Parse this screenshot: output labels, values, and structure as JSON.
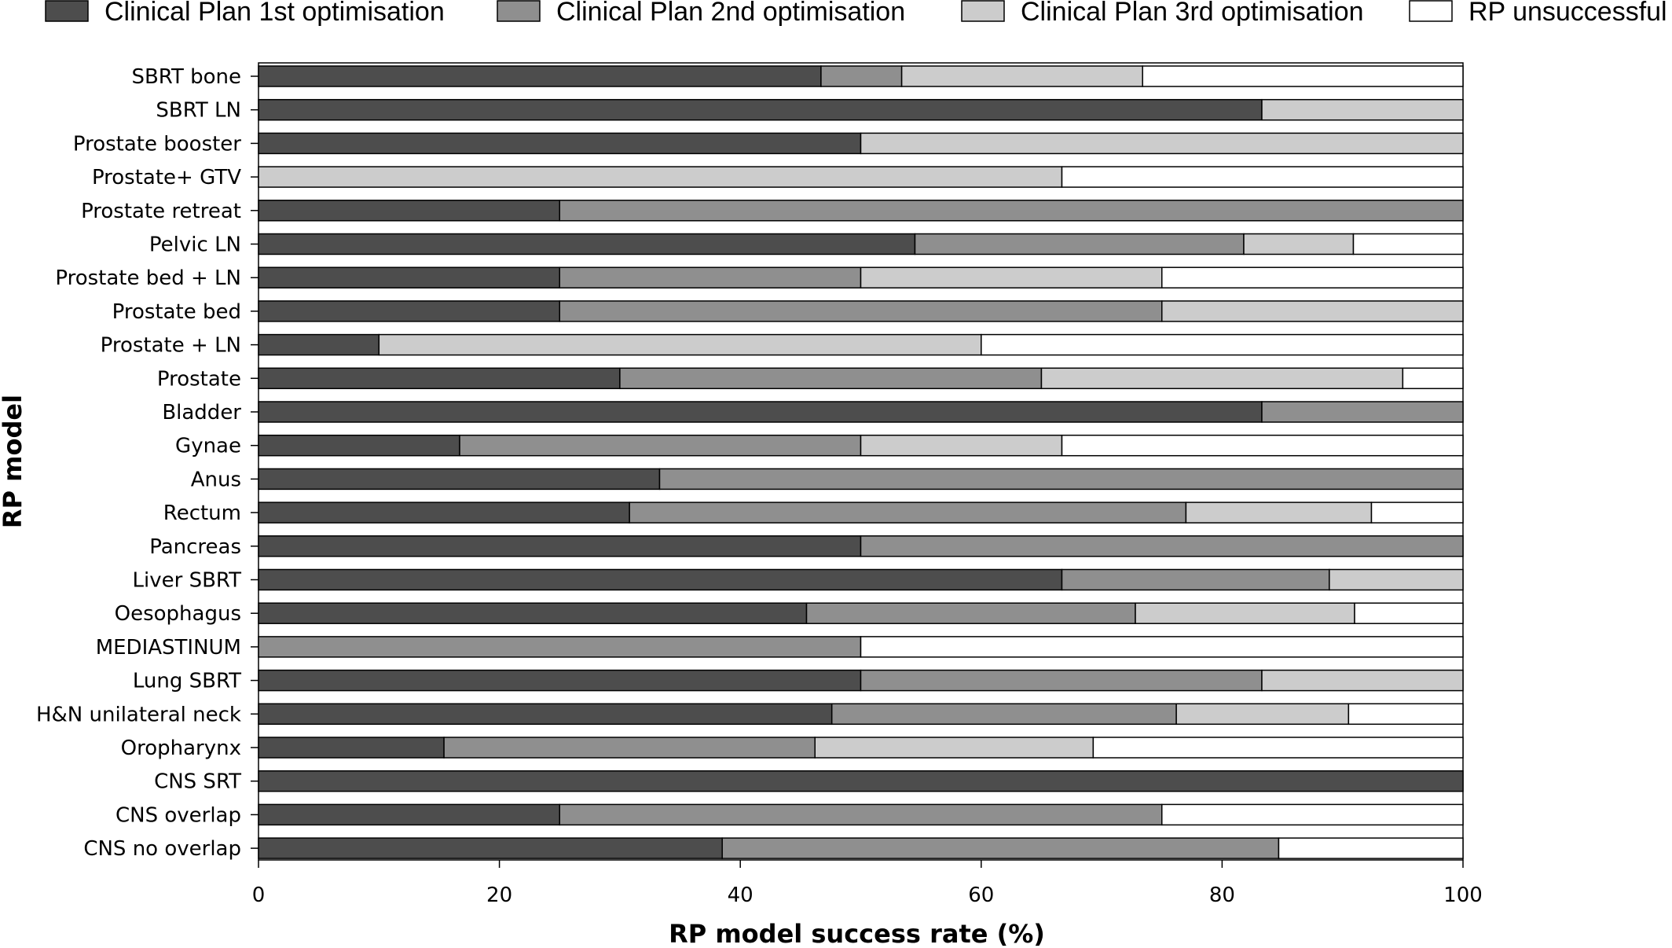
{
  "chart_data": {
    "type": "bar",
    "orientation": "horizontal",
    "stacked": true,
    "xlabel": "RP model success rate (%)",
    "ylabel": "RP model",
    "xlim": [
      0,
      100
    ],
    "xticks": [
      "0",
      "20",
      "40",
      "60",
      "80",
      "100"
    ],
    "grid": false,
    "legend_position": "top",
    "categories": [
      "SBRT bone",
      "SBRT LN",
      "Prostate booster",
      "Prostate+ GTV",
      "Prostate retreat",
      "Pelvic LN",
      "Prostate bed + LN",
      "Prostate bed",
      "Prostate + LN",
      "Prostate",
      "Bladder",
      "Gynae",
      "Anus",
      "Rectum",
      "Pancreas",
      "Liver SBRT",
      "Oesophagus",
      "MEDIASTINUM",
      "Lung SBRT",
      "H&N unilateral neck",
      "Oropharynx",
      "CNS SRT",
      "CNS overlap",
      "CNS no overlap"
    ],
    "series": [
      {
        "name": "Clinical Plan 1st optimisation",
        "color": "#4d4d4d",
        "values": [
          46.7,
          83.3,
          50,
          0,
          25,
          54.5,
          25,
          25,
          10,
          30,
          83.3,
          16.7,
          33.3,
          30.8,
          50,
          66.7,
          45.5,
          0,
          50,
          47.6,
          15.4,
          100,
          25,
          38.5
        ]
      },
      {
        "name": "Clinical Plan 2nd optimisation",
        "color": "#8f8f8f",
        "values": [
          6.7,
          0,
          0,
          0,
          75,
          27.3,
          25,
          50,
          0,
          35,
          16.7,
          33.3,
          66.7,
          46.2,
          50,
          22.2,
          27.3,
          50,
          33.3,
          28.6,
          30.8,
          0,
          50,
          46.2
        ]
      },
      {
        "name": "Clinical Plan 3rd optimisation",
        "color": "#cccccc",
        "values": [
          20,
          16.7,
          50,
          66.7,
          0,
          9.1,
          25,
          25,
          50,
          30,
          0,
          16.7,
          0,
          15.4,
          0,
          11.1,
          18.2,
          0,
          16.7,
          14.3,
          23.1,
          0,
          0,
          0
        ]
      },
      {
        "name": "RP unsuccessful",
        "color": "#ffffff",
        "values": [
          26.6,
          0,
          0,
          33.3,
          0,
          9.1,
          25,
          0,
          40,
          5,
          0,
          33.3,
          0,
          7.6,
          0,
          0,
          9,
          50,
          0,
          9.5,
          30.7,
          0,
          25,
          15.3
        ]
      }
    ]
  }
}
